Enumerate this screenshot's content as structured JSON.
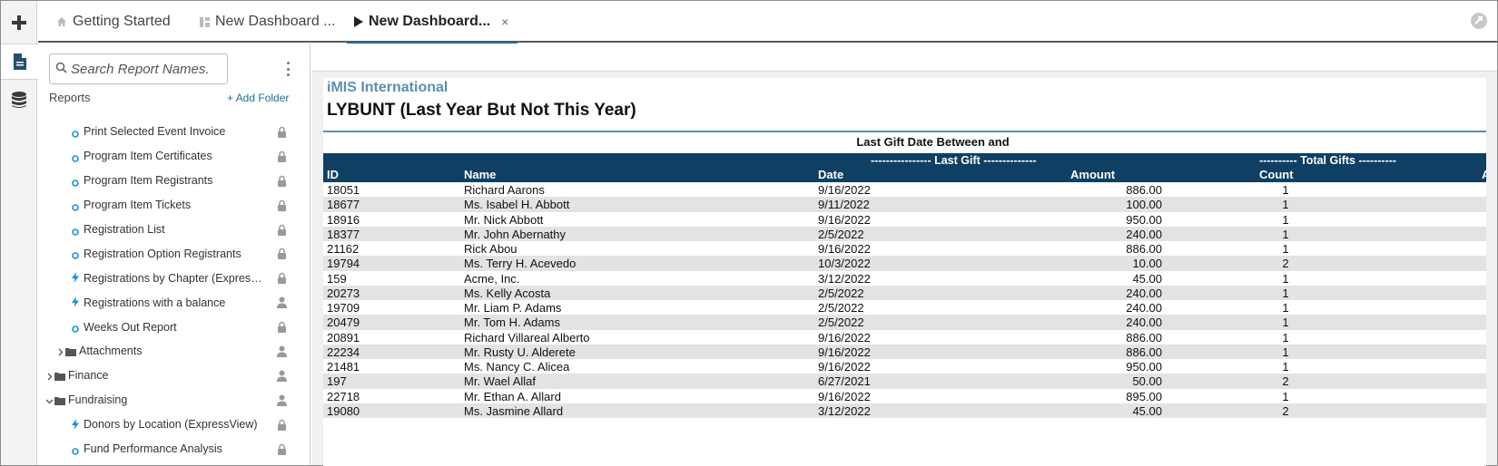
{
  "rail": {
    "items": [
      {
        "icon": "add-icon"
      },
      {
        "icon": "document-icon"
      },
      {
        "icon": "database-icon"
      }
    ]
  },
  "tabs": [
    {
      "label": "Getting Started",
      "icon": "home-icon"
    },
    {
      "label": "New Dashboard ...",
      "icon": "dashboard-icon"
    },
    {
      "label": "New Dashboard...",
      "icon": "play-icon",
      "close": "×"
    }
  ],
  "sidebar": {
    "search_placeholder": "Search Report Names.",
    "reports_title": "Reports",
    "add_folder": "+ Add Folder",
    "items": [
      {
        "label": "Print Selected Event Invoice",
        "kind": "report",
        "status": "lock"
      },
      {
        "label": "Program Item Certificates",
        "kind": "report",
        "status": "lock"
      },
      {
        "label": "Program Item Registrants",
        "kind": "report",
        "status": "lock"
      },
      {
        "label": "Program Item Tickets",
        "kind": "report",
        "status": "lock"
      },
      {
        "label": "Registration List",
        "kind": "report",
        "status": "lock"
      },
      {
        "label": "Registration Option Registrants",
        "kind": "report",
        "status": "lock"
      },
      {
        "label": "Registrations by Chapter (ExpressView)",
        "kind": "express",
        "status": "lock"
      },
      {
        "label": "Registrations with a balance",
        "kind": "express",
        "status": "user"
      },
      {
        "label": "Weeks Out Report",
        "kind": "report",
        "status": "lock"
      },
      {
        "label": "Attachments",
        "kind": "folder",
        "level": 1,
        "expanded": false,
        "status": "user"
      },
      {
        "label": "Finance",
        "kind": "folder",
        "level": 0,
        "expanded": false,
        "status": "user"
      },
      {
        "label": "Fundraising",
        "kind": "folder",
        "level": 0,
        "expanded": true,
        "status": "user"
      },
      {
        "label": "Donors by Location (ExpressView)",
        "kind": "express",
        "status": "lock"
      },
      {
        "label": "Fund Performance Analysis",
        "kind": "report",
        "status": "lock"
      }
    ]
  },
  "report": {
    "org": "iMIS International",
    "title": "LYBUNT (Last Year But Not This Year)",
    "subtitle": "Last Gift Date Between  and",
    "group_last_gift": "---------------- Last Gift --------------",
    "group_total_gifts": "---------- Total Gifts ----------",
    "columns": {
      "id": "ID",
      "name": "Name",
      "date": "Date",
      "amount": "Amount",
      "count": "Count",
      "cut": "A"
    },
    "rows": [
      {
        "id": "18051",
        "name": "Richard Aarons",
        "date": "9/16/2022",
        "amount": "886.00",
        "count": "1"
      },
      {
        "id": "18677",
        "name": "Ms. Isabel H. Abbott",
        "date": "9/11/2022",
        "amount": "100.00",
        "count": "1"
      },
      {
        "id": "18916",
        "name": "Mr. Nick Abbott",
        "date": "9/16/2022",
        "amount": "950.00",
        "count": "1"
      },
      {
        "id": "18377",
        "name": "Mr. John Abernathy",
        "date": "2/5/2022",
        "amount": "240.00",
        "count": "1"
      },
      {
        "id": "21162",
        "name": "Rick Abou",
        "date": "9/16/2022",
        "amount": "886.00",
        "count": "1"
      },
      {
        "id": "19794",
        "name": "Ms. Terry H. Acevedo",
        "date": "10/3/2022",
        "amount": "10.00",
        "count": "2"
      },
      {
        "id": "159",
        "name": "Acme, Inc.",
        "date": "3/12/2022",
        "amount": "45.00",
        "count": "1"
      },
      {
        "id": "20273",
        "name": "Ms. Kelly Acosta",
        "date": "2/5/2022",
        "amount": "240.00",
        "count": "1"
      },
      {
        "id": "19709",
        "name": "Mr. Liam P. Adams",
        "date": "2/5/2022",
        "amount": "240.00",
        "count": "1"
      },
      {
        "id": "20479",
        "name": "Mr. Tom H. Adams",
        "date": "2/5/2022",
        "amount": "240.00",
        "count": "1"
      },
      {
        "id": "20891",
        "name": "Richard Villareal Alberto",
        "date": "9/16/2022",
        "amount": "886.00",
        "count": "1"
      },
      {
        "id": "22234",
        "name": "Mr. Rusty U. Alderete",
        "date": "9/16/2022",
        "amount": "886.00",
        "count": "1"
      },
      {
        "id": "21481",
        "name": "Ms. Nancy C. Alicea",
        "date": "9/16/2022",
        "amount": "950.00",
        "count": "1"
      },
      {
        "id": "197",
        "name": "Mr. Wael Allaf",
        "date": "6/27/2021",
        "amount": "50.00",
        "count": "2"
      },
      {
        "id": "22718",
        "name": "Mr. Ethan A. Allard",
        "date": "9/16/2022",
        "amount": "895.00",
        "count": "1"
      },
      {
        "id": "19080",
        "name": "Ms. Jasmine Allard",
        "date": "3/12/2022",
        "amount": "45.00",
        "count": "2"
      }
    ]
  },
  "colors": {
    "accent": "#1f6e94",
    "header_bg": "#0f3f63",
    "org": "#5b8fb0",
    "express": "#1f8fd6"
  }
}
